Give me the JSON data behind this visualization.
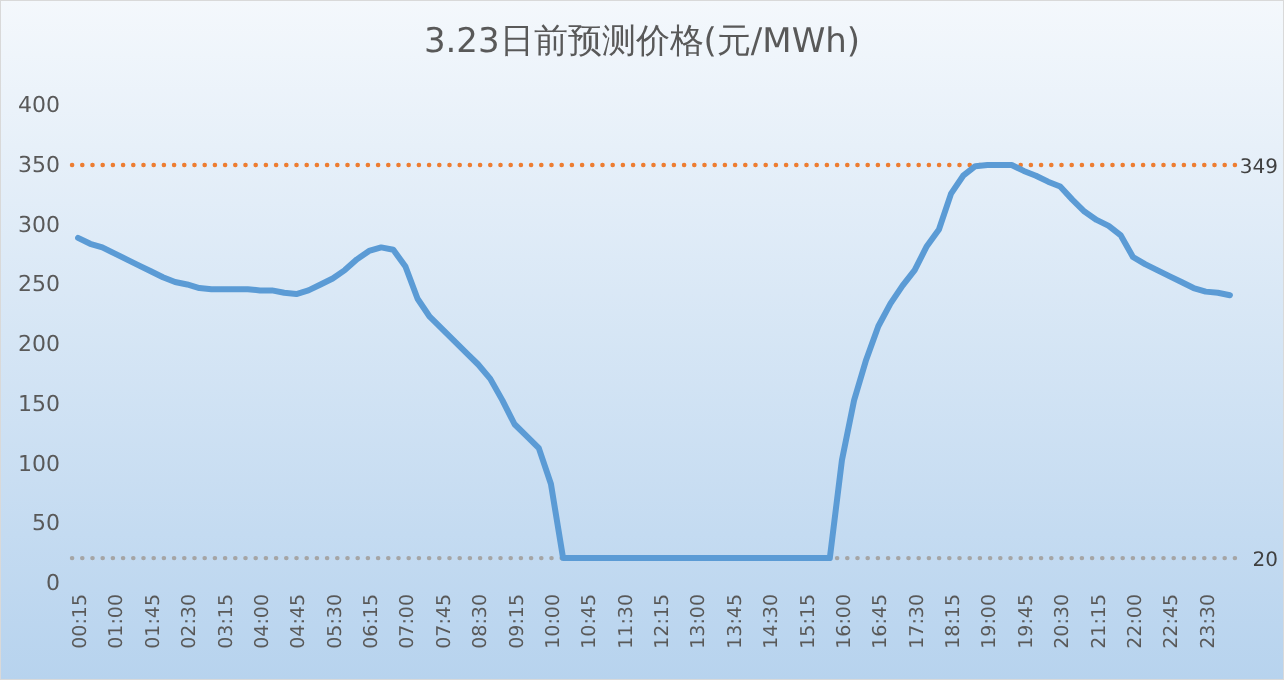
{
  "chart_data": {
    "type": "line",
    "title": "3.23日前预测价格(元/MWh)",
    "categories": [
      "00:15",
      null,
      null,
      "01:00",
      null,
      null,
      "01:45",
      null,
      null,
      "02:30",
      null,
      null,
      "03:15",
      null,
      null,
      "04:00",
      null,
      null,
      "04:45",
      null,
      null,
      "05:30",
      null,
      null,
      "06:15",
      null,
      null,
      "07:00",
      null,
      null,
      "07:45",
      null,
      null,
      "08:30",
      null,
      null,
      "09:15",
      null,
      null,
      "10:00",
      null,
      null,
      "10:45",
      null,
      null,
      "11:30",
      null,
      null,
      "12:15",
      null,
      null,
      "13:00",
      null,
      null,
      "13:45",
      null,
      null,
      "14:30",
      null,
      null,
      "15:15",
      null,
      null,
      "16:00",
      null,
      null,
      "16:45",
      null,
      null,
      "17:30",
      null,
      null,
      "18:15",
      null,
      null,
      "19:00",
      null,
      null,
      "19:45",
      null,
      null,
      "20:30",
      null,
      null,
      "21:15",
      null,
      null,
      "22:00",
      null,
      null,
      "22:45",
      null,
      null,
      "23:30",
      null,
      null
    ],
    "series": [
      {
        "color": "#5b9bd5",
        "values": [
          288,
          283,
          280,
          275,
          270,
          265,
          260,
          255,
          251,
          249,
          246,
          245,
          245,
          245,
          245,
          244,
          244,
          242,
          241,
          244,
          249,
          254,
          261,
          270,
          277,
          280,
          278,
          264,
          237,
          222,
          212,
          202,
          192,
          182,
          170,
          152,
          132,
          122,
          112,
          82,
          20,
          20,
          20,
          20,
          20,
          20,
          20,
          20,
          20,
          20,
          20,
          20,
          20,
          20,
          20,
          20,
          20,
          20,
          20,
          20,
          20,
          20,
          20,
          102,
          152,
          186,
          214,
          233,
          248,
          261,
          281,
          295,
          325,
          340,
          348,
          349,
          349,
          349,
          344,
          340,
          335,
          331,
          320,
          310,
          303,
          298,
          290,
          272,
          266,
          261,
          256,
          251,
          246,
          243,
          242,
          240
        ]
      }
    ],
    "ylim": [
      0,
      400
    ],
    "yticks": [
      0,
      50,
      100,
      150,
      200,
      250,
      300,
      350,
      400
    ],
    "grid": false,
    "marker": "none",
    "line_style": "solid",
    "ref_lines": [
      {
        "axis": "y",
        "value": 349,
        "label": "349",
        "color": "#ed7d31",
        "line_style": "dotted"
      },
      {
        "axis": "y",
        "value": 20,
        "label": "20",
        "color": "#a5a5a5",
        "line_style": "dotted"
      }
    ]
  }
}
